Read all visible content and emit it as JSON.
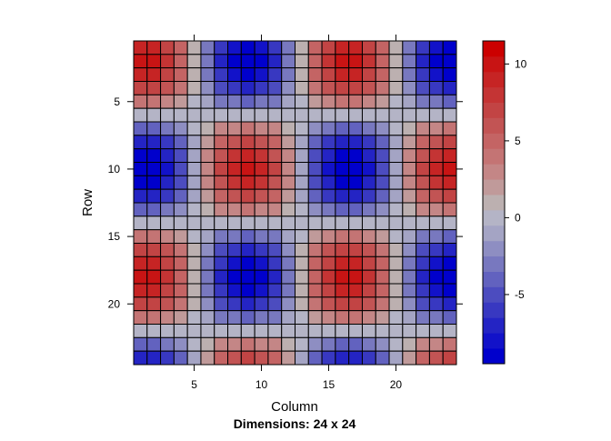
{
  "chart_data": {
    "type": "heatmap",
    "xlabel": "Column",
    "ylabel": "Row",
    "subtitle": "Dimensions: 24 x 24",
    "rows": 24,
    "cols": 24,
    "x_ticks": [
      5,
      10,
      15,
      20
    ],
    "y_ticks": [
      5,
      10,
      15,
      20
    ],
    "y_reversed": true,
    "value_model": "z = 10*cos(2*pi*(row-2)/16)*cos(2*pi*(col-1.5)/15)",
    "zlim": [
      -9.5,
      11.5
    ],
    "colorbar": {
      "ticks": [
        -5,
        0,
        5,
        10
      ],
      "breaks": [
        -9.5,
        -8.5,
        -7.5,
        -6.5,
        -5.5,
        -4.5,
        -3.5,
        -2.5,
        -1.5,
        -0.5,
        0.5,
        1.5,
        2.5,
        3.5,
        4.5,
        5.5,
        6.5,
        7.5,
        8.5,
        9.5,
        10.5,
        11.5
      ],
      "colors": [
        "#0000cc",
        "#1212c9",
        "#2424c4",
        "#3838c1",
        "#4c4cbf",
        "#6262bf",
        "#7878bf",
        "#8e8ec2",
        "#a4a4c4",
        "#b4b4c6",
        "#bcb0b0",
        "#c09a9a",
        "#c48686",
        "#c47474",
        "#c46464",
        "#c25454",
        "#c24444",
        "#c43434",
        "#c62424",
        "#c81414",
        "#cc0000"
      ]
    }
  }
}
